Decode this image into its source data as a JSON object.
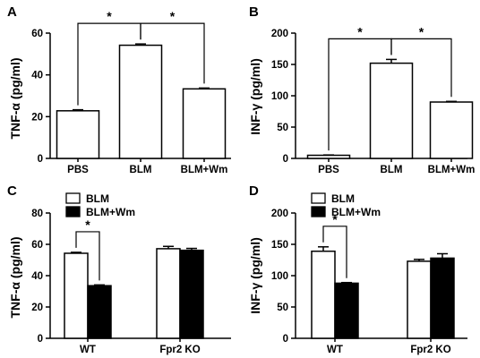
{
  "chart_data": [
    {
      "panel": "A",
      "type": "bar",
      "ylabel": "TNF-α (pg/ml)",
      "ylim": [
        0,
        60
      ],
      "yticks": [
        0,
        20,
        40,
        60
      ],
      "categories": [
        "PBS",
        "BLM",
        "BLM+Wm"
      ],
      "series": [
        {
          "values": [
            22.8,
            54.2,
            33.3
          ],
          "errors": [
            0.5,
            0.6,
            0.4
          ],
          "color": "#ffffff"
        }
      ],
      "significance": [
        {
          "from": 0,
          "to": 1,
          "label": "*"
        },
        {
          "from": 1,
          "to": 2,
          "label": "*"
        }
      ]
    },
    {
      "panel": "B",
      "type": "bar",
      "ylabel": "INF-γ (pg/ml)",
      "ylim": [
        0,
        200
      ],
      "yticks": [
        0,
        50,
        100,
        150,
        200
      ],
      "categories": [
        "PBS",
        "BLM",
        "BLM+Wm"
      ],
      "series": [
        {
          "values": [
            5,
            152,
            90
          ],
          "errors": [
            0.5,
            6,
            1
          ],
          "color": "#ffffff"
        }
      ],
      "significance": [
        {
          "from": 0,
          "to": 1,
          "label": "*"
        },
        {
          "from": 1,
          "to": 2,
          "label": "*"
        }
      ]
    },
    {
      "panel": "C",
      "type": "bar",
      "ylabel": "TNF-α (pg/ml)",
      "ylim": [
        0,
        80
      ],
      "yticks": [
        0,
        20,
        40,
        60,
        80
      ],
      "categories": [
        "WT",
        "Fpr2 KO"
      ],
      "series": [
        {
          "name": "BLM",
          "values": [
            54.3,
            57.2
          ],
          "errors": [
            0.6,
            1.5
          ],
          "color": "#ffffff"
        },
        {
          "name": "BLM+Wm",
          "values": [
            33.6,
            56.2
          ],
          "errors": [
            0.5,
            1.2
          ],
          "color": "#000000"
        }
      ],
      "legend": "top-left",
      "significance": [
        {
          "category": 0,
          "label": "*"
        }
      ]
    },
    {
      "panel": "D",
      "type": "bar",
      "ylabel": "INF-γ (pg/ml)",
      "ylim": [
        0,
        200
      ],
      "yticks": [
        0,
        50,
        100,
        150,
        200
      ],
      "categories": [
        "WT",
        "Fpr2 KO"
      ],
      "series": [
        {
          "name": "BLM",
          "values": [
            139,
            123
          ],
          "errors": [
            7,
            3
          ],
          "color": "#ffffff"
        },
        {
          "name": "BLM+Wm",
          "values": [
            88,
            128
          ],
          "errors": [
            1,
            7
          ],
          "color": "#000000"
        }
      ],
      "legend": "top-left",
      "significance": [
        {
          "category": 0,
          "label": "*"
        }
      ]
    }
  ]
}
